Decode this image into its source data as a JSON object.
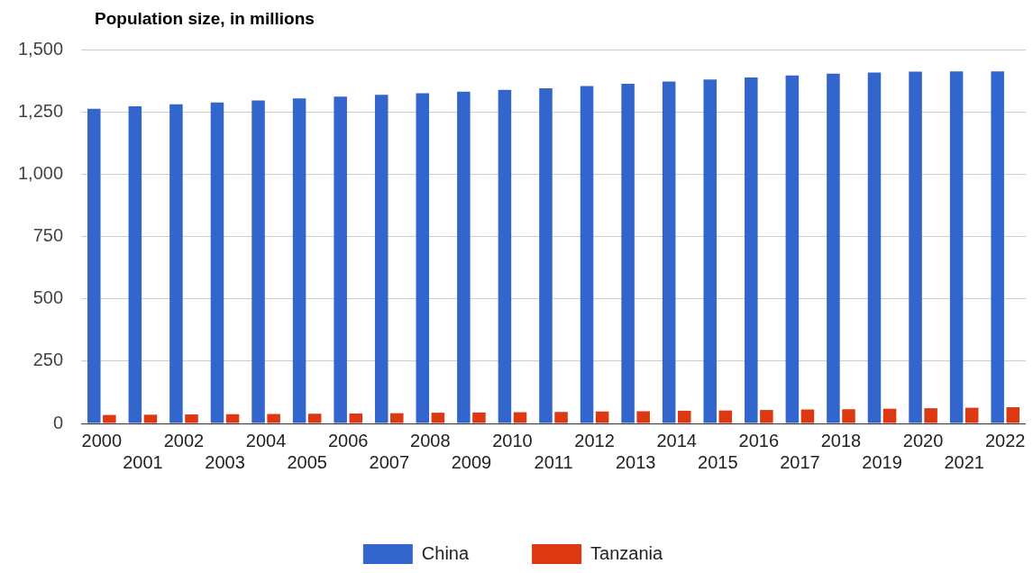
{
  "chart_data": {
    "type": "bar",
    "title": "Population size, in millions",
    "categories": [
      "2000",
      "2001",
      "2002",
      "2003",
      "2004",
      "2005",
      "2006",
      "2007",
      "2008",
      "2009",
      "2010",
      "2011",
      "2012",
      "2013",
      "2014",
      "2015",
      "2016",
      "2017",
      "2018",
      "2019",
      "2020",
      "2021",
      "2022"
    ],
    "series": [
      {
        "name": "China",
        "color": "#3366cc",
        "values": [
          1262,
          1272,
          1280,
          1288,
          1296,
          1304,
          1311,
          1318,
          1325,
          1331,
          1338,
          1345,
          1354,
          1363,
          1372,
          1380,
          1388,
          1396,
          1403,
          1408,
          1411,
          1412,
          1412
        ]
      },
      {
        "name": "Tanzania",
        "color": "#dc3912",
        "values": [
          34,
          35,
          36,
          37,
          38,
          39,
          40,
          41,
          43,
          44,
          45,
          46,
          48,
          49,
          51,
          52,
          54,
          56,
          57,
          59,
          61,
          63,
          65
        ]
      }
    ],
    "ylim": [
      0,
      1500
    ],
    "yticks": [
      0,
      {
        "value": 250,
        "label": "250"
      },
      {
        "value": 500,
        "label": "500"
      },
      {
        "value": 750,
        "label": "750"
      },
      {
        "value": 1000,
        "label": "1,000"
      },
      {
        "value": 1250,
        "label": "1,250"
      },
      {
        "value": 1500,
        "label": "1,500"
      }
    ],
    "grid": "y",
    "legend": "bottom"
  }
}
